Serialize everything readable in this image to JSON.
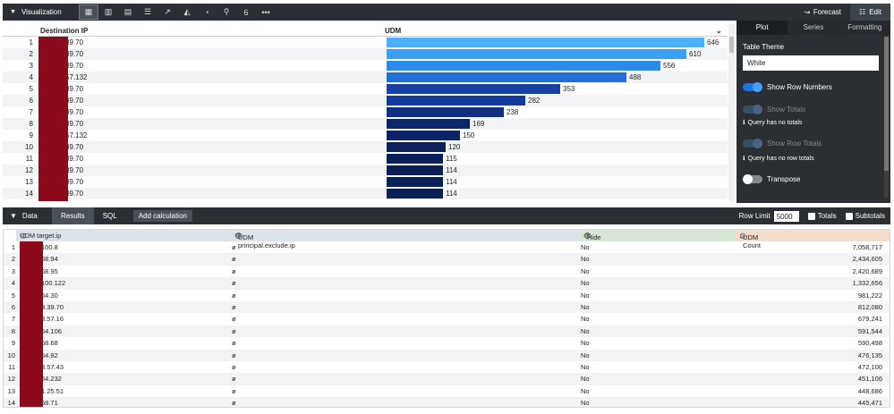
{
  "viz_bar": {
    "title": "Visualization",
    "forecast_label": "Forecast",
    "edit_label": "Edit",
    "viz_types": [
      "table-icon",
      "bar-chart-icon",
      "table-chart-icon",
      "list-icon",
      "line-chart-icon",
      "area-chart-icon",
      "pie-icon",
      "map-pin-icon",
      "single-value-icon",
      "more-icon"
    ]
  },
  "viz_table": {
    "col_ip": "Destination IP",
    "col_udm": "UDM",
    "max_value": 646,
    "rows": [
      {
        "n": "1",
        "ip": "39.70",
        "v": 646,
        "label": "646"
      },
      {
        "n": "2",
        "ip": "39.70",
        "v": 610,
        "label": "610"
      },
      {
        "n": "3",
        "ip": "39.70",
        "v": 556,
        "label": "556"
      },
      {
        "n": "4",
        "ip": "57.132",
        "v": 488,
        "label": "488"
      },
      {
        "n": "5",
        "ip": "39.70",
        "v": 353,
        "label": "353"
      },
      {
        "n": "6",
        "ip": "39.70",
        "v": 282,
        "label": "282"
      },
      {
        "n": "7",
        "ip": "39.70",
        "v": 238,
        "label": "238"
      },
      {
        "n": "8",
        "ip": "39.70",
        "v": 169,
        "label": "169"
      },
      {
        "n": "9",
        "ip": "57.132",
        "v": 150,
        "label": "150"
      },
      {
        "n": "10",
        "ip": "39.70",
        "v": 120,
        "label": "120"
      },
      {
        "n": "11",
        "ip": "39.70",
        "v": 115,
        "label": "115"
      },
      {
        "n": "12",
        "ip": "39.70",
        "v": 114,
        "label": "114"
      },
      {
        "n": "13",
        "ip": "39.70",
        "v": 114,
        "label": "114"
      },
      {
        "n": "14",
        "ip": "39.70",
        "v": 114,
        "label": "114"
      }
    ]
  },
  "panel": {
    "tabs": [
      "Plot",
      "Series",
      "Formatting"
    ],
    "table_theme_label": "Table Theme",
    "table_theme_value": "White",
    "show_row_numbers": "Show Row Numbers",
    "show_totals": "Show Totals",
    "no_totals_note": "Query has no totals",
    "show_row_totals": "Show Row Totals",
    "no_row_totals_note": "Query has no row totals",
    "transpose": "Transpose"
  },
  "data_bar": {
    "title": "Data",
    "tab_results": "Results",
    "tab_sql": "SQL",
    "add_calc": "Add calculation",
    "row_limit_label": "Row Limit",
    "row_limit_value": "5000",
    "totals_label": "Totals",
    "subtotals_label": "Subtotals"
  },
  "results": {
    "headers": [
      "UDM target.ip",
      "UDM principal.exclude.ip",
      "Hide",
      "UDM Count"
    ],
    "colors": {
      "c1": "#dbe3ea",
      "c2": "#dbe3ea",
      "c3": "#d5e8d4",
      "c4": "#f4dcc8"
    },
    "rows": [
      {
        "n": "1",
        "ip": "100.8",
        "p": "ø",
        "h": "No",
        "c": "7,058,717"
      },
      {
        "n": "2",
        "ip": "68.94",
        "p": "ø",
        "h": "No",
        "c": "2,434,605"
      },
      {
        "n": "3",
        "ip": "68.95",
        "p": "ø",
        "h": "No",
        "c": "2,420,689"
      },
      {
        "n": "4",
        "ip": "100.122",
        "p": "ø",
        "h": "No",
        "c": "1,332,656"
      },
      {
        "n": "5",
        "ip": "64.30",
        "p": "ø",
        "h": "No",
        "c": "981,222"
      },
      {
        "n": "6",
        "ip": "3.39.70",
        "p": "ø",
        "h": "No",
        "c": "812,080"
      },
      {
        "n": "7",
        "ip": "3.57.16",
        "p": "ø",
        "h": "No",
        "c": "679,241"
      },
      {
        "n": "8",
        "ip": "64.106",
        "p": "ø",
        "h": "No",
        "c": "591,544"
      },
      {
        "n": "9",
        "ip": "68.68",
        "p": "ø",
        "h": "No",
        "c": "590,498"
      },
      {
        "n": "10",
        "ip": "64.92",
        "p": "ø",
        "h": "No",
        "c": "476,135"
      },
      {
        "n": "11",
        "ip": "3.57.43",
        "p": "ø",
        "h": "No",
        "c": "472,100"
      },
      {
        "n": "12",
        "ip": "64.232",
        "p": "ø",
        "h": "No",
        "c": "451,106"
      },
      {
        "n": "13",
        "ip": "1.25.51",
        "p": "ø",
        "h": "No",
        "c": "448,686"
      },
      {
        "n": "14",
        "ip": "68.71",
        "p": "ø",
        "h": "No",
        "c": "445,471"
      }
    ]
  }
}
